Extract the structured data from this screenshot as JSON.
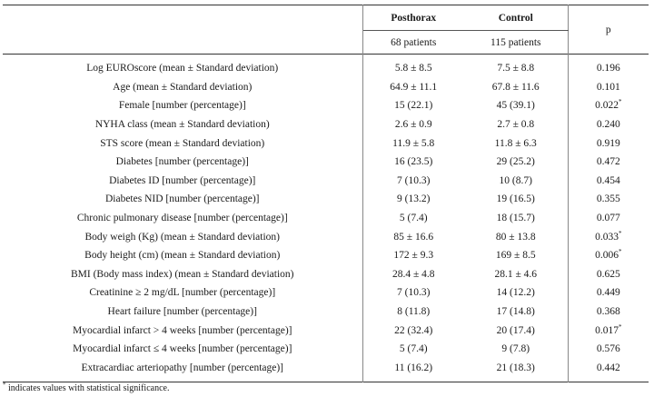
{
  "table": {
    "header": {
      "group_posthorax": "Posthorax",
      "group_control": "Control",
      "p_label": "p",
      "n_posthorax": "68 patients",
      "n_control": "115 patients"
    },
    "rows": [
      {
        "label": "Log EUROscore (mean ± Standard deviation)",
        "posthorax": "5.8 ± 8.5",
        "control": "7.5 ± 8.8",
        "p": "0.196",
        "sig": ""
      },
      {
        "label": "Age (mean ± Standard deviation)",
        "posthorax": "64.9 ± 11.1",
        "control": "67.8 ± 11.6",
        "p": "0.101",
        "sig": ""
      },
      {
        "label": "Female [number (percentage)]",
        "posthorax": "15 (22.1)",
        "control": "45 (39.1)",
        "p": "0.022",
        "sig": "*"
      },
      {
        "label": "NYHA class (mean ± Standard deviation)",
        "posthorax": "2.6 ± 0.9",
        "control": "2.7 ± 0.8",
        "p": "0.240",
        "sig": ""
      },
      {
        "label": "STS score (mean ± Standard deviation)",
        "posthorax": "11.9 ± 5.8",
        "control": "11.8 ± 6.3",
        "p": "0.919",
        "sig": ""
      },
      {
        "label": "Diabetes [number (percentage)]",
        "posthorax": "16 (23.5)",
        "control": "29 (25.2)",
        "p": "0.472",
        "sig": ""
      },
      {
        "label": "Diabetes ID [number (percentage)]",
        "posthorax": "7 (10.3)",
        "control": "10 (8.7)",
        "p": "0.454",
        "sig": ""
      },
      {
        "label": "Diabetes NID [number (percentage)]",
        "posthorax": "9 (13.2)",
        "control": "19 (16.5)",
        "p": "0.355",
        "sig": ""
      },
      {
        "label": "Chronic pulmonary disease [number (percentage)]",
        "posthorax": "5 (7.4)",
        "control": "18 (15.7)",
        "p": "0.077",
        "sig": ""
      },
      {
        "label": "Body weigh (Kg) (mean ± Standard deviation)",
        "posthorax": "85 ± 16.6",
        "control": "80 ± 13.8",
        "p": "0.033",
        "sig": "*"
      },
      {
        "label": "Body height (cm) (mean ± Standard deviation)",
        "posthorax": "172 ± 9.3",
        "control": "169 ± 8.5",
        "p": "0.006",
        "sig": "*"
      },
      {
        "label": "BMI (Body mass index) (mean ± Standard deviation)",
        "posthorax": "28.4 ± 4.8",
        "control": "28.1 ± 4.6",
        "p": "0.625",
        "sig": ""
      },
      {
        "label": "Creatinine ≥ 2 mg/dL [number (percentage)]",
        "posthorax": "7 (10.3)",
        "control": "14 (12.2)",
        "p": "0.449",
        "sig": ""
      },
      {
        "label": "Heart failure [number (percentage)]",
        "posthorax": "8 (11.8)",
        "control": "17 (14.8)",
        "p": "0.368",
        "sig": ""
      },
      {
        "label": "Myocardial infarct > 4 weeks [number (percentage)]",
        "posthorax": "22 (32.4)",
        "control": "20 (17.4)",
        "p": "0.017",
        "sig": "*"
      },
      {
        "label": "Myocardial infarct ≤ 4 weeks [number (percentage)]",
        "posthorax": "5 (7.4)",
        "control": "9 (7.8)",
        "p": "0.576",
        "sig": ""
      },
      {
        "label": "Extracardiac arteriopathy [number (percentage)]",
        "posthorax": "11 (16.2)",
        "control": "21 (18.3)",
        "p": "0.442",
        "sig": ""
      }
    ]
  },
  "footnote": {
    "marker": "*",
    "text": "indicates values with statistical significance."
  }
}
